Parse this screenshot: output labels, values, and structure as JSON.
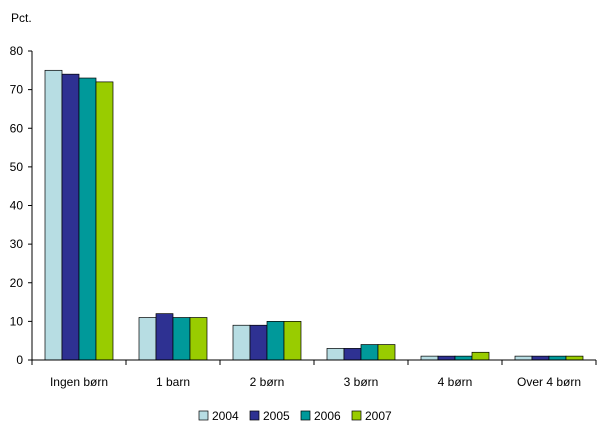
{
  "chart_data": {
    "type": "bar",
    "title": "",
    "xlabel": "",
    "ylabel": "",
    "unit_label": "Pct.",
    "categories": [
      "Ingen børn",
      "1 barn",
      "2 børn",
      "3 børn",
      "4 børn",
      "Over 4 børn"
    ],
    "series": [
      {
        "name": "2004",
        "color": "#b7dde3",
        "values": [
          75,
          11,
          9,
          3,
          1,
          1
        ]
      },
      {
        "name": "2005",
        "color": "#2e3192",
        "values": [
          74,
          12,
          9,
          3,
          1,
          1
        ]
      },
      {
        "name": "2006",
        "color": "#00999a",
        "values": [
          73,
          11,
          10,
          4,
          1,
          1
        ]
      },
      {
        "name": "2007",
        "color": "#99cc00",
        "values": [
          72,
          11,
          10,
          4,
          2,
          1
        ]
      }
    ],
    "ylim": [
      0,
      80
    ],
    "yticks": [
      0,
      10,
      20,
      30,
      40,
      50,
      60,
      70,
      80
    ],
    "grid": false,
    "legend_position": "bottom-center"
  }
}
